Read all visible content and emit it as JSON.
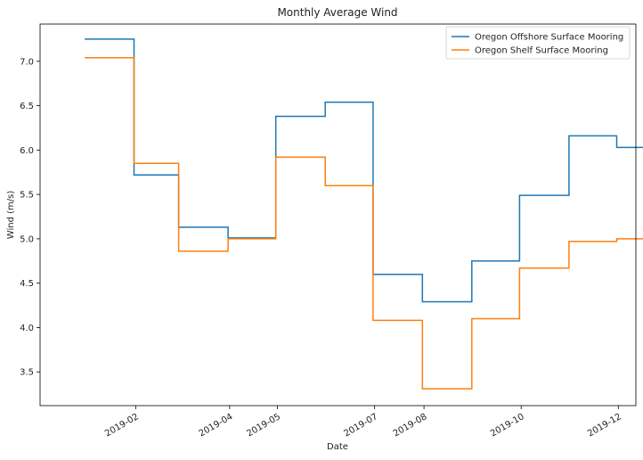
{
  "chart_data": {
    "type": "line",
    "drawstyle": "steps-post",
    "title": "Monthly Average Wind",
    "xlabel": "Date",
    "ylabel": "Wind (m/s)",
    "xlim": [
      "2018-12-03",
      "2019-12-12"
    ],
    "ylim": [
      3.12,
      7.42
    ],
    "x_ticks": [
      "2019-02",
      "2019-04",
      "2019-05",
      "2019-07",
      "2019-08",
      "2019-10",
      "2019-12"
    ],
    "x_tick_dates": [
      "2019-02-01",
      "2019-04-01",
      "2019-05-01",
      "2019-07-01",
      "2019-08-01",
      "2019-10-01",
      "2019-12-01"
    ],
    "x_tick_rotation": 30,
    "y_ticks": [
      3.5,
      4.0,
      4.5,
      5.0,
      5.5,
      6.0,
      6.5,
      7.0
    ],
    "y_tick_labels": [
      "3.5",
      "4.0",
      "4.5",
      "5.0",
      "5.5",
      "6.0",
      "6.5",
      "7.0"
    ],
    "grid": false,
    "legend_position": "top-right",
    "x": [
      "2018-12-31",
      "2019-01-31",
      "2019-02-28",
      "2019-03-31",
      "2019-04-30",
      "2019-05-31",
      "2019-06-30",
      "2019-07-31",
      "2019-08-31",
      "2019-09-30",
      "2019-10-31",
      "2019-11-30"
    ],
    "series": [
      {
        "name": "Oregon Offshore Surface Mooring",
        "color": "#1f77b4",
        "values": [
          7.25,
          5.72,
          5.13,
          5.01,
          6.38,
          6.54,
          4.6,
          4.29,
          4.75,
          5.49,
          6.16,
          6.03
        ]
      },
      {
        "name": "Oregon Shelf Surface Mooring",
        "color": "#ff7f0e",
        "values": [
          7.04,
          5.85,
          4.86,
          5.0,
          5.92,
          5.6,
          4.08,
          3.31,
          4.1,
          4.67,
          4.97,
          5.0
        ]
      }
    ]
  }
}
